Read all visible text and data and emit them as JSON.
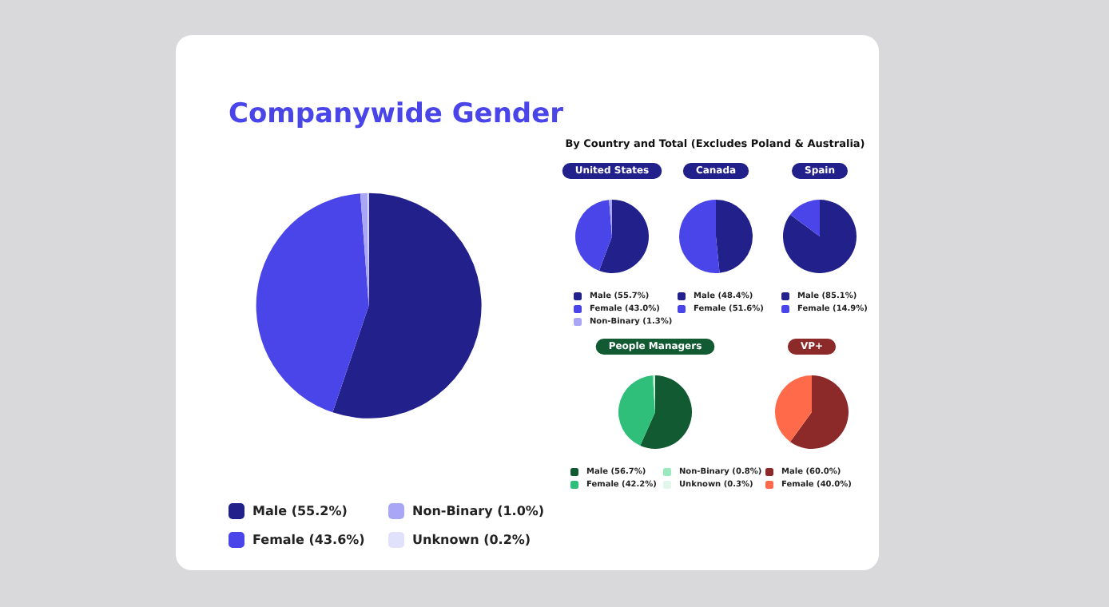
{
  "chart_data": [
    {
      "type": "pie",
      "title": "Companywide Gender",
      "categories": [
        "Male (55.2%)",
        "Female (43.6%)",
        "Non-Binary (1.0%)",
        "Unknown (0.2%)"
      ],
      "values": [
        55.2,
        43.6,
        1.0,
        0.2
      ],
      "colors": [
        "#22208a",
        "#4a45e8",
        "#a9a6f5",
        "#e2e1fb"
      ],
      "legend": "bottom"
    },
    {
      "type": "pie",
      "title": "United States",
      "subtitle": "By Country and Total (Excludes Poland & Australia)",
      "categories": [
        "Male (55.7%)",
        "Female (43.0%)",
        "Non-Binary (1.3%)"
      ],
      "values": [
        55.7,
        43.0,
        1.3
      ],
      "colors": [
        "#22208a",
        "#4a45e8",
        "#a9a6f5"
      ],
      "legend": "bottom"
    },
    {
      "type": "pie",
      "title": "Canada",
      "categories": [
        "Male (48.4%)",
        "Female (51.6%)"
      ],
      "values": [
        48.4,
        51.6
      ],
      "colors": [
        "#22208a",
        "#4a45e8"
      ],
      "legend": "bottom"
    },
    {
      "type": "pie",
      "title": "Spain",
      "categories": [
        "Male (85.1%)",
        "Female (14.9%)"
      ],
      "values": [
        85.1,
        14.9
      ],
      "colors": [
        "#22208a",
        "#4a45e8"
      ],
      "legend": "bottom"
    },
    {
      "type": "pie",
      "title": "People Managers",
      "categories": [
        "Male (56.7%)",
        "Female (42.2%)",
        "Non-Binary (0.8%)",
        "Unknown (0.3%)"
      ],
      "values": [
        56.7,
        42.2,
        0.8,
        0.3
      ],
      "colors": [
        "#125a32",
        "#2fbf7a",
        "#9ae8bd",
        "#e0f7ea"
      ],
      "legend": "bottom"
    },
    {
      "type": "pie",
      "title": "VP+",
      "categories": [
        "Male (60.0%)",
        "Female (40.0%)"
      ],
      "values": [
        60.0,
        40.0
      ],
      "colors": [
        "#8c2a2a",
        "#ff6a4a"
      ],
      "legend": "bottom"
    }
  ]
}
